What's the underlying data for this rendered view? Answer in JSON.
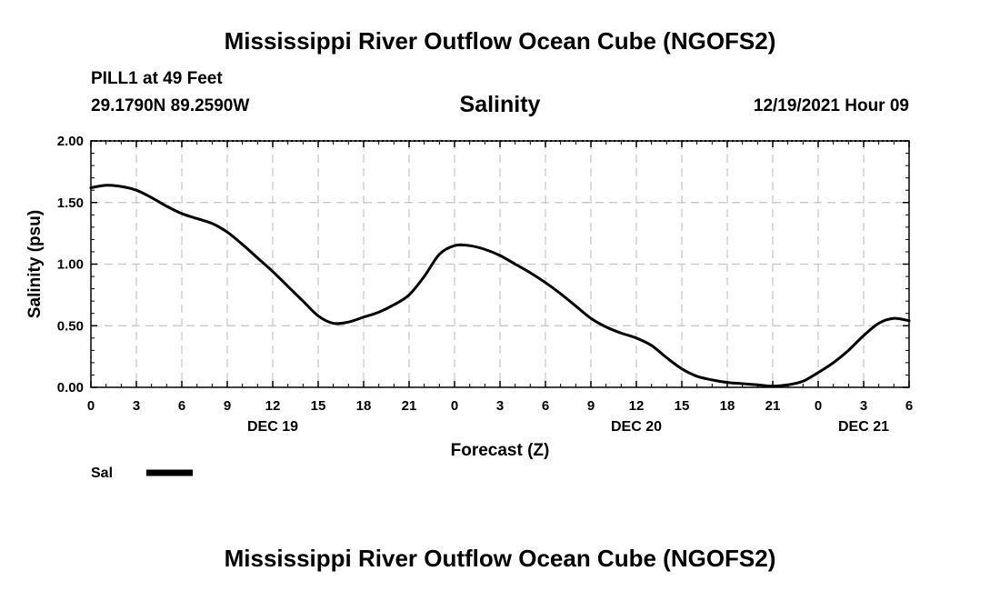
{
  "page": {
    "title": "Mississippi River Outflow Ocean Cube (NGOFS2)",
    "footer_title": "Mississippi River Outflow Ocean Cube (NGOFS2)",
    "station": "PILL1 at 49 Feet",
    "coords": "29.1790N  89.2590W",
    "datetime": "12/19/2021 Hour 09"
  },
  "chart_data": {
    "type": "line",
    "title": "Salinity",
    "xlabel": "Forecast (Z)",
    "ylabel": "Salinity (psu)",
    "xlim": [
      0,
      54
    ],
    "ylim": [
      0,
      2
    ],
    "grid": true,
    "x_ticks": [
      0,
      3,
      6,
      9,
      12,
      15,
      18,
      21,
      24,
      27,
      30,
      33,
      36,
      39,
      42,
      45,
      48,
      51,
      54
    ],
    "x_tick_labels": [
      "0",
      "3",
      "6",
      "9",
      "12",
      "15",
      "18",
      "21",
      "0",
      "3",
      "6",
      "9",
      "12",
      "15",
      "18",
      "21",
      "0",
      "3",
      "6"
    ],
    "y_ticks": [
      0,
      0.5,
      1.0,
      1.5,
      2.0
    ],
    "y_tick_labels": [
      "0.00",
      "0.50",
      "1.00",
      "1.50",
      "2.00"
    ],
    "day_labels": [
      {
        "x": 12,
        "label": "DEC 19"
      },
      {
        "x": 36,
        "label": "DEC 20"
      },
      {
        "x": 51,
        "label": "DEC 21"
      }
    ],
    "series": [
      {
        "name": "Sal",
        "color": "#000000",
        "x": [
          0,
          1,
          2,
          3,
          4,
          5,
          6,
          7,
          8,
          9,
          10,
          11,
          12,
          13,
          14,
          15,
          16,
          17,
          18,
          19,
          20,
          21,
          22,
          23,
          24,
          25,
          26,
          27,
          28,
          29,
          30,
          31,
          32,
          33,
          34,
          35,
          36,
          37,
          38,
          39,
          40,
          41,
          42,
          43,
          44,
          45,
          46,
          47,
          48,
          49,
          50,
          51,
          52,
          53,
          54
        ],
        "y": [
          1.62,
          1.64,
          1.63,
          1.6,
          1.54,
          1.47,
          1.41,
          1.37,
          1.33,
          1.26,
          1.16,
          1.05,
          0.94,
          0.82,
          0.7,
          0.58,
          0.52,
          0.53,
          0.57,
          0.61,
          0.67,
          0.75,
          0.9,
          1.08,
          1.15,
          1.15,
          1.12,
          1.07,
          1.0,
          0.93,
          0.85,
          0.76,
          0.66,
          0.56,
          0.49,
          0.44,
          0.4,
          0.34,
          0.24,
          0.15,
          0.09,
          0.06,
          0.04,
          0.03,
          0.02,
          0.01,
          0.02,
          0.05,
          0.12,
          0.2,
          0.3,
          0.42,
          0.52,
          0.56,
          0.54
        ]
      }
    ],
    "legend": {
      "label": "Sal",
      "placement": "bottom-left"
    }
  }
}
